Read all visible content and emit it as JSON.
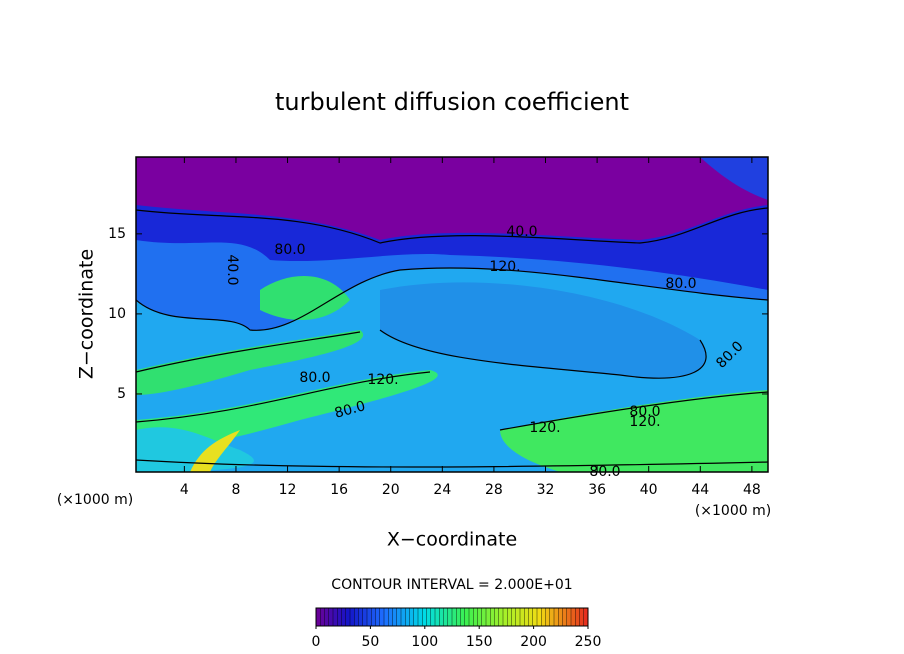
{
  "chart_data": {
    "type": "contour",
    "title": "turbulent diffusion coefficient",
    "x_label": "X−coordinate",
    "y_label": "Z−coordinate",
    "x_unit": "(×1000 m)",
    "y_unit": "(×1000 m)",
    "xlim": [
      0.25,
      49.25
    ],
    "ylim": [
      0.125,
      19.8
    ],
    "xticks": [
      4,
      8,
      12,
      16,
      20,
      24,
      28,
      32,
      36,
      40,
      44,
      48
    ],
    "yticks": [
      5,
      10,
      15
    ],
    "contour_interval_text": "CONTOUR INTERVAL = 2.000E+01",
    "colorbar": {
      "lim": [
        0,
        250
      ],
      "ticks": [
        0,
        50,
        100,
        150,
        200,
        250
      ]
    },
    "contour_labels": [
      "40.0",
      "80.0",
      "120.",
      "80.0",
      "80.0",
      "120.",
      "80.0",
      "80.0",
      "120.",
      "120.",
      "80.0",
      "80.0",
      "40.0"
    ]
  }
}
